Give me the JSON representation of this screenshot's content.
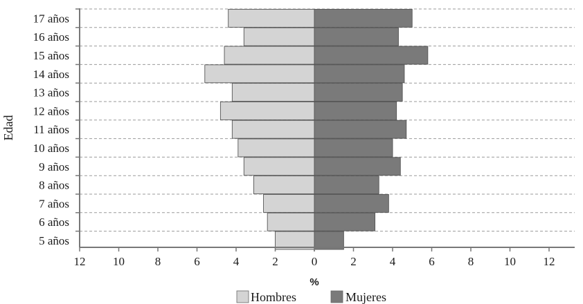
{
  "chart_data": {
    "type": "bar",
    "orientation": "horizontal",
    "layout": "population-pyramid",
    "categories": [
      "5 años",
      "6 años",
      "7 años",
      "8 años",
      "9 años",
      "10 años",
      "11 años",
      "12 años",
      "13 años",
      "14 años",
      "15 años",
      "16 años",
      "17 años"
    ],
    "series": [
      {
        "name": "Hombres",
        "side": "left",
        "color": "#d4d4d4",
        "values": [
          2.0,
          2.4,
          2.6,
          3.1,
          3.6,
          3.9,
          4.2,
          4.8,
          4.2,
          5.6,
          4.6,
          3.6,
          4.4
        ]
      },
      {
        "name": "Mujeres",
        "side": "right",
        "color": "#7a7a7a",
        "values": [
          1.5,
          3.1,
          3.8,
          3.3,
          4.4,
          4.0,
          4.7,
          4.2,
          4.5,
          4.6,
          5.8,
          4.3,
          5.0
        ]
      }
    ],
    "xlim": [
      -12,
      14
    ],
    "xticks": [
      "12",
      "10",
      "8",
      "6",
      "4",
      "2",
      "0",
      "2",
      "4",
      "6",
      "8",
      "10",
      "12"
    ],
    "xlabel": "%",
    "ylabel": "Edad",
    "gridlines": "horizontal-dashed",
    "legend": "bottom-center"
  }
}
